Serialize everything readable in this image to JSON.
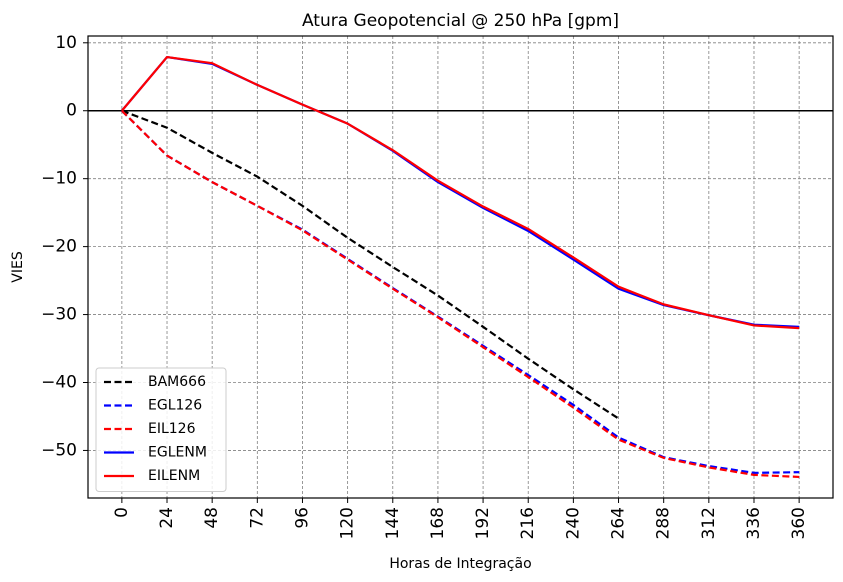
{
  "chart_data": {
    "type": "line",
    "title": "Atura Geopotencial @ 250 hPa [gpm]",
    "xlabel": "Horas de Integração",
    "ylabel": "VIES",
    "xlim": [
      -18,
      378
    ],
    "ylim": [
      -57,
      11
    ],
    "x_ticks": [
      0,
      24,
      48,
      72,
      96,
      120,
      144,
      168,
      192,
      216,
      240,
      264,
      288,
      312,
      336,
      360
    ],
    "x_tick_labels": [
      "0",
      "24",
      "48",
      "72",
      "96",
      "120",
      "144",
      "168",
      "192",
      "216",
      "240",
      "264",
      "288",
      "312",
      "336",
      "360"
    ],
    "y_ticks": [
      10,
      0,
      -10,
      -20,
      -30,
      -40,
      -50
    ],
    "y_tick_labels": [
      "10",
      "0",
      "−10",
      "−20",
      "−30",
      "−40",
      "−50"
    ],
    "grid": true,
    "zero_line": true,
    "legend_position": "lower-left",
    "series": [
      {
        "name": "BAM666",
        "color": "#000000",
        "style": "dashed",
        "x": [
          0,
          24,
          48,
          72,
          96,
          120,
          144,
          168,
          192,
          216,
          240,
          264
        ],
        "values": [
          0,
          -2.5,
          -6.2,
          -9.7,
          -14,
          -18.7,
          -23,
          -27.2,
          -31.8,
          -36.5,
          -41,
          -45.3
        ]
      },
      {
        "name": "EGL126",
        "color": "#0000ff",
        "style": "dashed",
        "x": [
          0,
          24,
          48,
          72,
          96,
          120,
          144,
          168,
          192,
          216,
          240,
          264,
          288,
          312,
          336,
          360
        ],
        "values": [
          0,
          -6.6,
          -10.5,
          -14,
          -17.5,
          -21.8,
          -26.1,
          -30.3,
          -34.6,
          -38.9,
          -43.3,
          -48.1,
          -51,
          -52.3,
          -53.3,
          -53.2
        ]
      },
      {
        "name": "EIL126",
        "color": "#ff0000",
        "style": "dashed",
        "x": [
          0,
          24,
          48,
          72,
          96,
          120,
          144,
          168,
          192,
          216,
          240,
          264,
          288,
          312,
          336,
          360
        ],
        "values": [
          0,
          -6.6,
          -10.5,
          -14,
          -17.6,
          -21.9,
          -26.2,
          -30.4,
          -34.8,
          -39.2,
          -43.7,
          -48.4,
          -51.1,
          -52.5,
          -53.6,
          -53.9
        ]
      },
      {
        "name": "EGLENM",
        "color": "#0000ff",
        "style": "solid",
        "x": [
          0,
          24,
          48,
          72,
          96,
          120,
          144,
          168,
          192,
          216,
          240,
          264,
          288,
          312,
          336,
          360
        ],
        "values": [
          0,
          7.9,
          6.9,
          3.8,
          0.9,
          -1.9,
          -5.9,
          -10.5,
          -14.3,
          -17.7,
          -21.9,
          -26.2,
          -28.6,
          -30.1,
          -31.5,
          -31.8
        ]
      },
      {
        "name": "EILENM",
        "color": "#ff0000",
        "style": "solid",
        "x": [
          0,
          24,
          48,
          72,
          96,
          120,
          144,
          168,
          192,
          216,
          240,
          264,
          288,
          312,
          336,
          360
        ],
        "values": [
          0,
          7.9,
          7.0,
          3.8,
          0.9,
          -1.9,
          -5.8,
          -10.3,
          -14.1,
          -17.4,
          -21.6,
          -25.9,
          -28.5,
          -30.1,
          -31.6,
          -32.0
        ]
      }
    ]
  }
}
